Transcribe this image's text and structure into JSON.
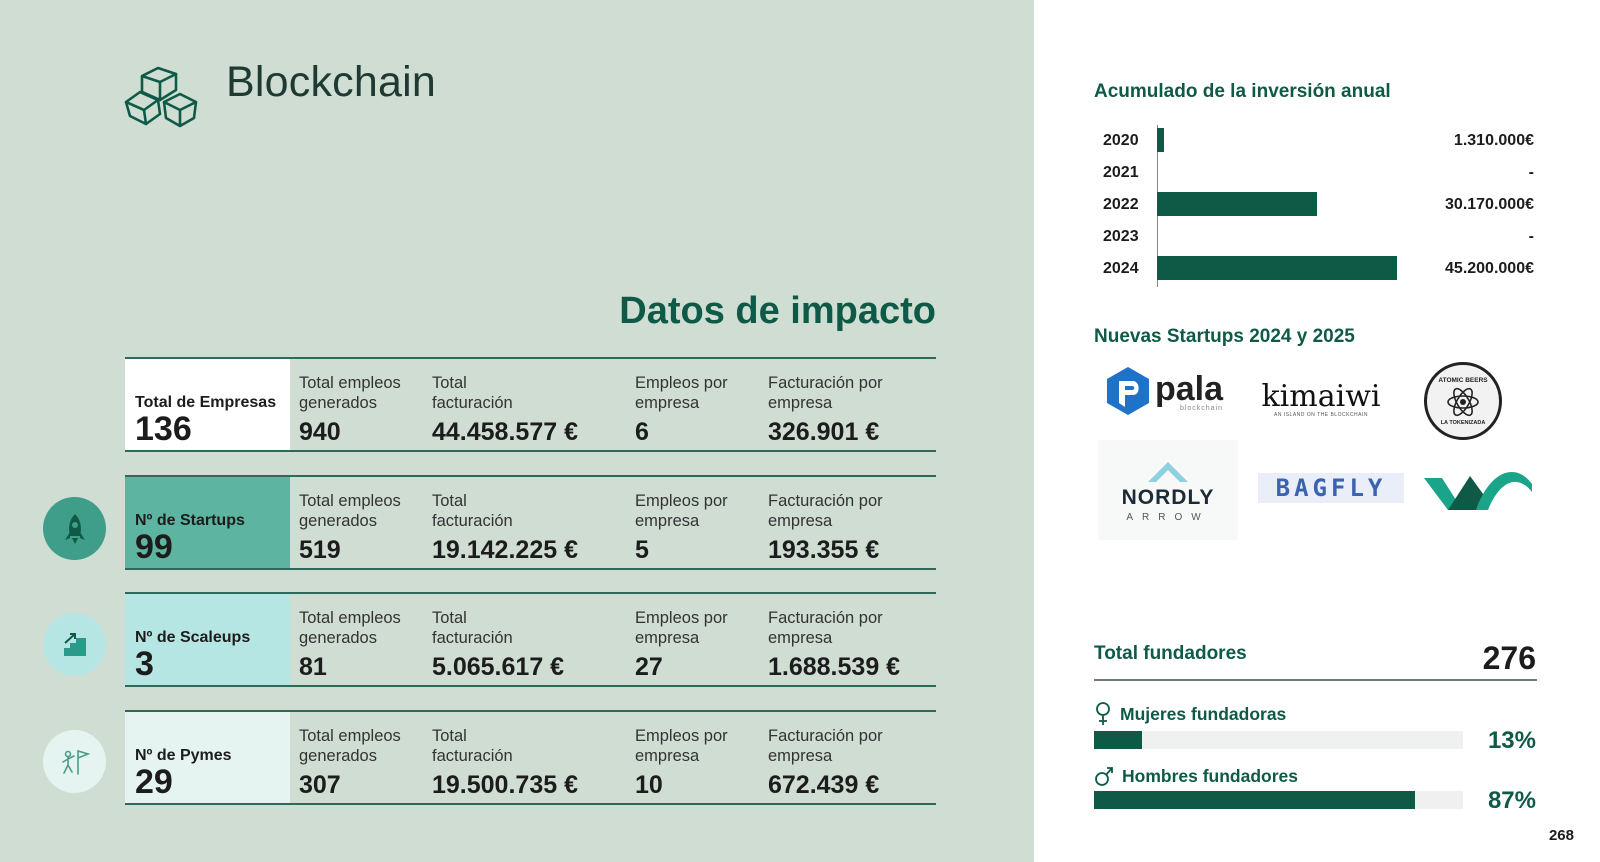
{
  "header": {
    "title": "Blockchain",
    "icon": "blocks-icon"
  },
  "impact": {
    "heading": "Datos de impacto",
    "rows": [
      {
        "id": "empresas",
        "label": "Total de Empresas",
        "count": "136",
        "bg": "#ffffff",
        "icon": null,
        "stats": [
          {
            "label": "Total empleos generados",
            "value": "940"
          },
          {
            "label": "Total facturación",
            "value": "44.458.577 €"
          },
          {
            "label": "Empleos por empresa",
            "value": "6"
          },
          {
            "label": "Facturación por empresa",
            "value": "326.901 €"
          }
        ]
      },
      {
        "id": "startups",
        "label": "Nº de Startups",
        "count": "99",
        "bg": "#5db4a1",
        "icon": "rocket-icon",
        "stats": [
          {
            "label": "Total empleos generados",
            "value": "519"
          },
          {
            "label": "Total facturación",
            "value": "19.142.225 €"
          },
          {
            "label": "Empleos por empresa",
            "value": "5"
          },
          {
            "label": "Facturación por empresa",
            "value": "193.355 €"
          }
        ]
      },
      {
        "id": "scaleups",
        "label": "Nº de Scaleups",
        "count": "3",
        "bg": "#b6e6e3",
        "icon": "growth-stairs-icon",
        "stats": [
          {
            "label": "Total empleos generados",
            "value": "81"
          },
          {
            "label": "Total facturación",
            "value": "5.065.617 €"
          },
          {
            "label": "Empleos por empresa",
            "value": "27"
          },
          {
            "label": "Facturación por empresa",
            "value": "1.688.539 €"
          }
        ]
      },
      {
        "id": "pymes",
        "label": "Nº de Pymes",
        "count": "29",
        "bg": "#e5f4f1",
        "icon": "climber-flag-icon",
        "stats": [
          {
            "label": "Total empleos generados",
            "value": "307"
          },
          {
            "label": "Total facturación",
            "value": "19.500.735 €"
          },
          {
            "label": "Empleos por empresa",
            "value": "10"
          },
          {
            "label": "Facturación por empresa",
            "value": "672.439 €"
          }
        ]
      }
    ]
  },
  "investment": {
    "title": "Acumulado de la inversión anual",
    "chart_data": {
      "type": "bar",
      "orientation": "horizontal",
      "categories": [
        "2020",
        "2021",
        "2022",
        "2023",
        "2024"
      ],
      "values": [
        1310000,
        0,
        30170000,
        0,
        45200000
      ],
      "value_labels": [
        "1.310.000€",
        "-",
        "30.170.000€",
        "-",
        "45.200.000€"
      ],
      "xlim": [
        0,
        45200000
      ],
      "color": "#0f5a47"
    }
  },
  "startups_new": {
    "title": "Nuevas Startups 2024 y 2025",
    "logos": [
      {
        "name": "pala",
        "sub": "blockchain"
      },
      {
        "name": "kimaiwi",
        "sub": "AN ISLAND ON THE BLOCKCHAIN"
      },
      {
        "name": "ATOMIC BEERS",
        "sub": "LA TOKENIZADA"
      },
      {
        "name": "NORDLY",
        "sub": "ARROW"
      },
      {
        "name": "BAGFLY",
        "sub": ""
      },
      {
        "name": "W",
        "sub": ""
      }
    ]
  },
  "founders": {
    "label": "Total fundadores",
    "total": "276",
    "women": {
      "label": "Mujeres fundadoras",
      "pct": "13%",
      "fraction": 0.13
    },
    "men": {
      "label": "Hombres fundadores",
      "pct": "87%",
      "fraction": 0.87
    }
  },
  "page_number": "268",
  "colors": {
    "accent": "#0f5a47",
    "left_bg": "#cfddd3",
    "startups": "#5db4a1",
    "scaleups": "#b6e6e3",
    "pymes": "#e5f4f1"
  }
}
